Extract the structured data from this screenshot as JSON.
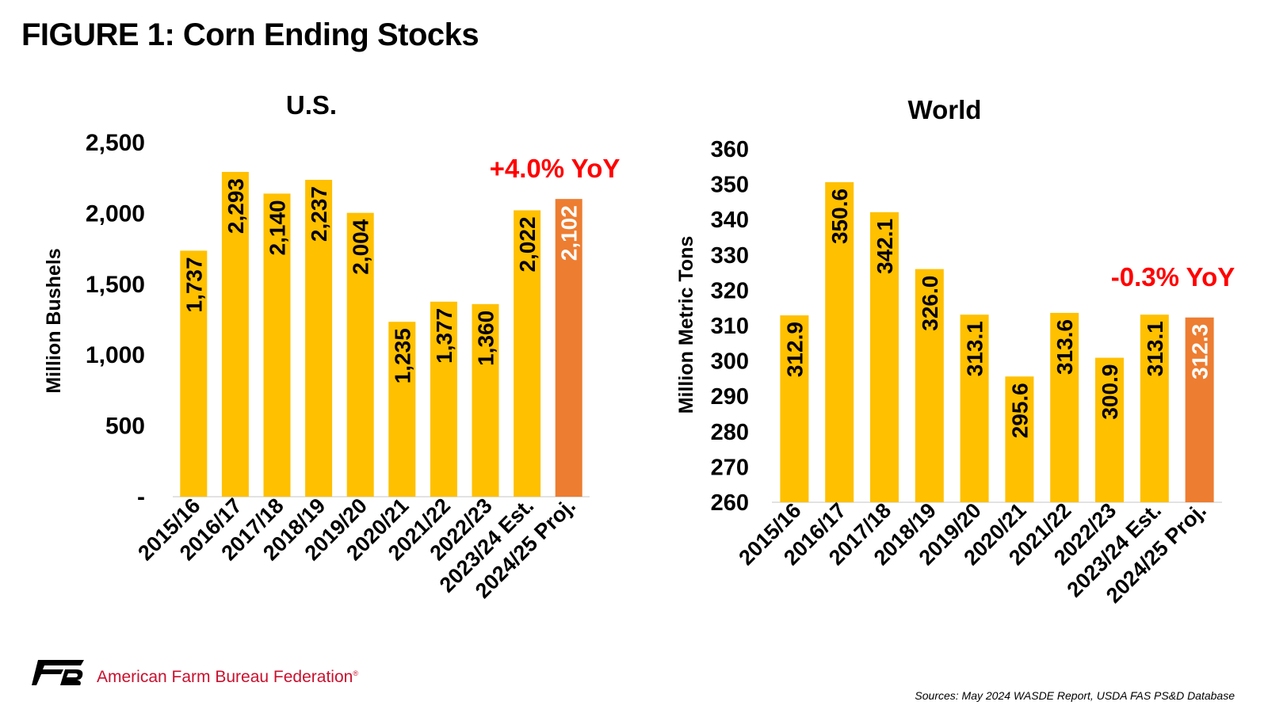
{
  "figure_title": "FIGURE 1: Corn Ending Stocks",
  "footer": {
    "organization": "American Farm Bureau Federation",
    "registered_mark": "®",
    "source": "Sources: May 2024 WASDE Report, USDA FAS PS&D Database",
    "logo_icon": "afbf-logo-icon"
  },
  "colors": {
    "bar": "#FFC000",
    "bar_highlight": "#ED7D31",
    "annotation": "#FF0000",
    "label_dark": "#000000",
    "label_light": "#FFFFFF"
  },
  "chart_data": [
    {
      "type": "bar",
      "title": "U.S.",
      "xlabel": "",
      "ylabel": "Million Bushels",
      "categories": [
        "2015/16",
        "2016/17",
        "2017/18",
        "2018/19",
        "2019/20",
        "2020/21",
        "2021/22",
        "2022/23",
        "2023/24 Est.",
        "2024/25 Proj."
      ],
      "values": [
        1737,
        2293,
        2140,
        2237,
        2004,
        1235,
        1377,
        1360,
        2022,
        2102
      ],
      "value_labels": [
        "1,737",
        "2,293",
        "2,140",
        "2,237",
        "2,004",
        "1,235",
        "1,377",
        "1,360",
        "2,022",
        "2,102"
      ],
      "highlight_index": 9,
      "ylim": [
        0,
        2500
      ],
      "yticks": [
        0,
        500,
        1000,
        1500,
        2000,
        2500
      ],
      "ytick_labels": [
        "-",
        "500",
        "1,000",
        "1,500",
        "2,000",
        "2,500"
      ],
      "annotation": "+4.0% YoY",
      "grid": false
    },
    {
      "type": "bar",
      "title": "World",
      "xlabel": "",
      "ylabel": "Million Metric Tons",
      "categories": [
        "2015/16",
        "2016/17",
        "2017/18",
        "2018/19",
        "2019/20",
        "2020/21",
        "2021/22",
        "2022/23",
        "2023/24 Est.",
        "2024/25 Proj."
      ],
      "values": [
        312.9,
        350.6,
        342.1,
        326.0,
        313.1,
        295.6,
        313.6,
        300.9,
        313.1,
        312.3
      ],
      "value_labels": [
        "312.9",
        "350.6",
        "342.1",
        "326.0",
        "313.1",
        "295.6",
        "313.6",
        "300.9",
        "313.1",
        "312.3"
      ],
      "highlight_index": 9,
      "ylim": [
        260,
        360
      ],
      "yticks": [
        260,
        270,
        280,
        290,
        300,
        310,
        320,
        330,
        340,
        350,
        360
      ],
      "ytick_labels": [
        "260",
        "270",
        "280",
        "290",
        "300",
        "310",
        "320",
        "330",
        "340",
        "350",
        "360"
      ],
      "annotation": "-0.3% YoY",
      "grid": false
    }
  ]
}
